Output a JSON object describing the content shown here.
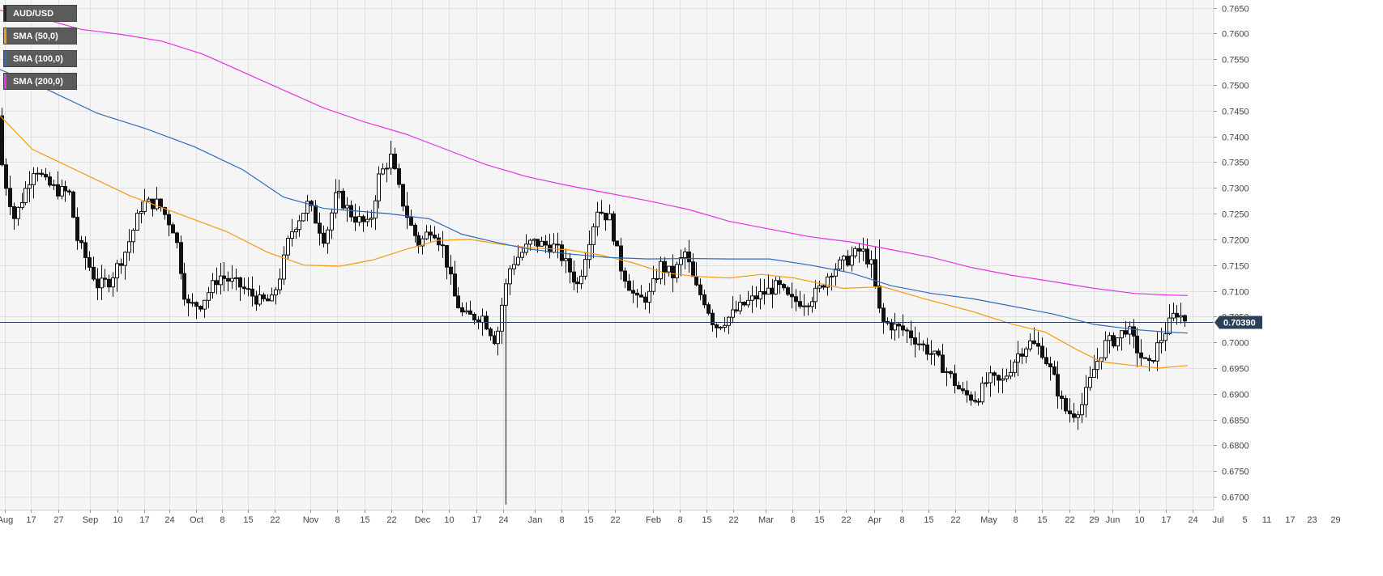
{
  "chart_data": {
    "type": "candlestick",
    "symbol": "AUD/USD",
    "last_price": "0.70390",
    "ylim": [
      0.6675,
      0.7665
    ],
    "y_ticks": [
      "0.7650",
      "0.7600",
      "0.7550",
      "0.7500",
      "0.7450",
      "0.7400",
      "0.7350",
      "0.7300",
      "0.7250",
      "0.7200",
      "0.7150",
      "0.7100",
      "0.7050",
      "0.7000",
      "0.6950",
      "0.6900",
      "0.6850",
      "0.6800",
      "0.6750",
      "0.6700"
    ],
    "x_ticks": [
      "Aug",
      "17",
      "27",
      "Sep",
      "10",
      "17",
      "24",
      "Oct",
      "8",
      "15",
      "22",
      "Nov",
      "8",
      "15",
      "22",
      "Dec",
      "10",
      "17",
      "24",
      "Jan",
      "8",
      "15",
      "22",
      "Feb",
      "8",
      "15",
      "22",
      "Mar",
      "8",
      "15",
      "22",
      "Apr",
      "8",
      "15",
      "22",
      "May",
      "8",
      "15",
      "22",
      "29",
      "Jun",
      "10",
      "17",
      "24",
      "Jul",
      "5",
      "11",
      "17",
      "23",
      "29"
    ],
    "series": [
      {
        "name": "SMA (50,0)",
        "color": "#f39c12",
        "points": [
          [
            0,
            0.744
          ],
          [
            40,
            0.7375
          ],
          [
            100,
            0.733
          ],
          [
            160,
            0.7285
          ],
          [
            220,
            0.725
          ],
          [
            280,
            0.7215
          ],
          [
            330,
            0.7175
          ],
          [
            375,
            0.715
          ],
          [
            420,
            0.7148
          ],
          [
            460,
            0.716
          ],
          [
            500,
            0.718
          ],
          [
            540,
            0.7198
          ],
          [
            580,
            0.72
          ],
          [
            620,
            0.719
          ],
          [
            660,
            0.7183
          ],
          [
            700,
            0.718
          ],
          [
            740,
            0.717
          ],
          [
            780,
            0.7155
          ],
          [
            820,
            0.7135
          ],
          [
            860,
            0.7128
          ],
          [
            900,
            0.7125
          ],
          [
            940,
            0.7132
          ],
          [
            980,
            0.7125
          ],
          [
            1010,
            0.7115
          ],
          [
            1040,
            0.7105
          ],
          [
            1090,
            0.7108
          ],
          [
            1140,
            0.7085
          ],
          [
            1200,
            0.706
          ],
          [
            1250,
            0.7035
          ],
          [
            1290,
            0.702
          ],
          [
            1330,
            0.6985
          ],
          [
            1360,
            0.6962
          ],
          [
            1400,
            0.6955
          ],
          [
            1430,
            0.695
          ],
          [
            1466,
            0.6955
          ]
        ]
      },
      {
        "name": "SMA (100,0)",
        "color": "#2e6bbd",
        "points": [
          [
            0,
            0.753
          ],
          [
            60,
            0.749
          ],
          [
            120,
            0.7445
          ],
          [
            180,
            0.7415
          ],
          [
            240,
            0.738
          ],
          [
            300,
            0.7335
          ],
          [
            350,
            0.7282
          ],
          [
            400,
            0.726
          ],
          [
            440,
            0.7255
          ],
          [
            480,
            0.725
          ],
          [
            530,
            0.724
          ],
          [
            570,
            0.721
          ],
          [
            610,
            0.7195
          ],
          [
            650,
            0.7182
          ],
          [
            700,
            0.7172
          ],
          [
            750,
            0.7165
          ],
          [
            800,
            0.7162
          ],
          [
            850,
            0.7163
          ],
          [
            900,
            0.7162
          ],
          [
            950,
            0.7162
          ],
          [
            1000,
            0.715
          ],
          [
            1050,
            0.7135
          ],
          [
            1100,
            0.711
          ],
          [
            1150,
            0.7095
          ],
          [
            1200,
            0.7085
          ],
          [
            1250,
            0.707
          ],
          [
            1300,
            0.7055
          ],
          [
            1350,
            0.7035
          ],
          [
            1400,
            0.7025
          ],
          [
            1440,
            0.702
          ],
          [
            1466,
            0.7018
          ]
        ]
      },
      {
        "name": "SMA (200,0)",
        "color": "#e633e6",
        "points": [
          [
            0,
            0.7645
          ],
          [
            50,
            0.763
          ],
          [
            100,
            0.7608
          ],
          [
            150,
            0.7598
          ],
          [
            200,
            0.7585
          ],
          [
            250,
            0.756
          ],
          [
            300,
            0.7525
          ],
          [
            350,
            0.749
          ],
          [
            400,
            0.7455
          ],
          [
            450,
            0.7428
          ],
          [
            500,
            0.7405
          ],
          [
            550,
            0.7375
          ],
          [
            600,
            0.7345
          ],
          [
            650,
            0.7322
          ],
          [
            700,
            0.7305
          ],
          [
            750,
            0.729
          ],
          [
            800,
            0.7275
          ],
          [
            850,
            0.7258
          ],
          [
            900,
            0.7235
          ],
          [
            950,
            0.722
          ],
          [
            1000,
            0.7205
          ],
          [
            1050,
            0.7195
          ],
          [
            1100,
            0.718
          ],
          [
            1150,
            0.7165
          ],
          [
            1200,
            0.7145
          ],
          [
            1250,
            0.713
          ],
          [
            1300,
            0.7118
          ],
          [
            1350,
            0.7105
          ],
          [
            1400,
            0.7095
          ],
          [
            1440,
            0.7092
          ],
          [
            1466,
            0.7091
          ]
        ]
      }
    ]
  },
  "legend": [
    {
      "label": "AUD/USD",
      "color": "#222222"
    },
    {
      "label": "SMA (50,0)",
      "color": "#f39c12"
    },
    {
      "label": "SMA (100,0)",
      "color": "#2e6bbd"
    },
    {
      "label": "SMA (200,0)",
      "color": "#e633e6"
    }
  ],
  "colors": {
    "background": "#f5f5f5",
    "grid": "#e1e1e1",
    "bull": "#ffffff",
    "bear": "#111111",
    "price_line": "#2a3f5a",
    "price_badge": "#2a3f5a"
  }
}
